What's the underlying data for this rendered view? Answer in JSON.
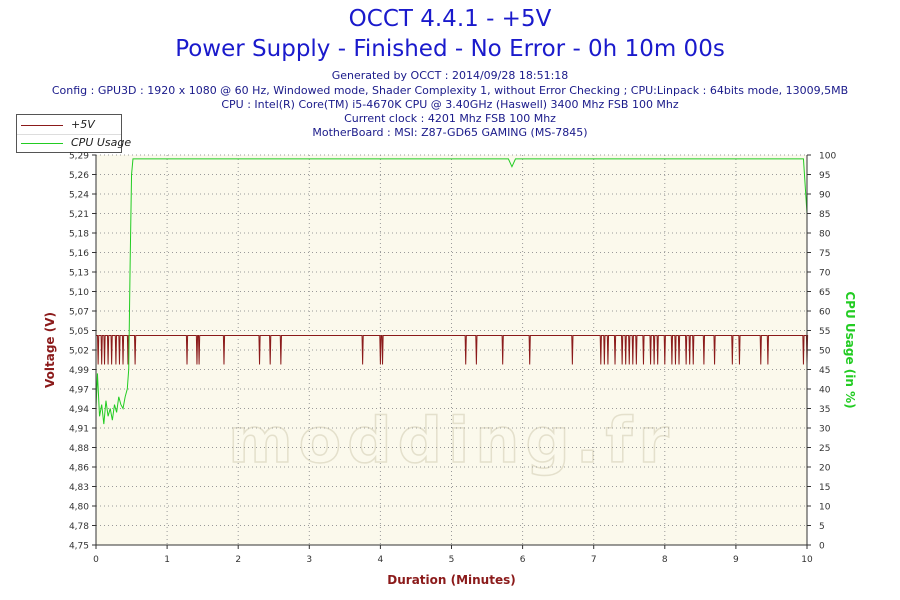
{
  "header": {
    "title": "OCCT 4.4.1 - +5V",
    "subtitle": "Power Supply - Finished - No Error - 0h 10m 00s",
    "generated": "Generated by OCCT : 2014/09/28 18:51:18",
    "config": "Config : GPU3D : 1920 x 1080 @ 60 Hz, Windowed mode, Shader Complexity 1, without Error Checking ; CPU:Linpack : 64bits mode, 13009,5MB",
    "cpu": "CPU : Intel(R) Core(TM) i5-4670K CPU @ 3.40GHz (Haswell) 3400 Mhz FSB 100 Mhz",
    "clock": "Current clock : 4201 Mhz FSB 100 Mhz",
    "motherboard": "MotherBoard : MSI: Z87-GD65 GAMING (MS-7845)"
  },
  "watermark": "modding.fr",
  "chart_data": {
    "type": "line",
    "title": "OCCT 4.4.1 - +5V",
    "xlabel": "Duration (Minutes)",
    "ylabel": "Voltage (V)",
    "y2label": "CPU Usage (in %)",
    "xlim": [
      0,
      10
    ],
    "ylim": [
      4.75,
      5.29
    ],
    "y2lim": [
      0,
      100
    ],
    "x_ticks": [
      "0",
      "1",
      "2",
      "3",
      "4",
      "5",
      "6",
      "7",
      "8",
      "9",
      "10"
    ],
    "y_ticks": [
      "4,75",
      "4,78",
      "4,80",
      "4,83",
      "4,86",
      "4,88",
      "4,91",
      "4,94",
      "4,97",
      "4,99",
      "5,02",
      "5,05",
      "5,07",
      "5,10",
      "5,13",
      "5,16",
      "5,18",
      "5,21",
      "5,24",
      "5,26",
      "5,29"
    ],
    "y2_ticks": [
      "0",
      "5",
      "10",
      "15",
      "20",
      "25",
      "30",
      "35",
      "40",
      "45",
      "50",
      "55",
      "60",
      "65",
      "70",
      "75",
      "80",
      "85",
      "90",
      "95",
      "100"
    ],
    "grid": true,
    "legend_position": "top-left",
    "series": [
      {
        "name": "+5V",
        "axis": "left",
        "color": "#8b1a1a",
        "baseline": 5.04,
        "low": 5.0,
        "dip_times": [
          0.03,
          0.08,
          0.12,
          0.17,
          0.22,
          0.28,
          0.33,
          0.38,
          0.45,
          0.55,
          1.28,
          1.42,
          1.45,
          1.8,
          2.3,
          2.45,
          2.6,
          3.75,
          4.0,
          4.03,
          5.2,
          5.35,
          5.72,
          6.1,
          6.7,
          7.1,
          7.15,
          7.2,
          7.3,
          7.4,
          7.45,
          7.5,
          7.55,
          7.6,
          7.7,
          7.8,
          7.85,
          7.9,
          8.0,
          8.1,
          8.15,
          8.2,
          8.3,
          8.35,
          8.4,
          8.55,
          8.7,
          8.95,
          9.05,
          9.35,
          9.45,
          9.95,
          10.0
        ]
      },
      {
        "name": "CPU Usage",
        "axis": "right",
        "color": "#22cc22",
        "x": [
          0,
          0.02,
          0.05,
          0.08,
          0.11,
          0.14,
          0.17,
          0.2,
          0.23,
          0.26,
          0.29,
          0.32,
          0.35,
          0.38,
          0.41,
          0.44,
          0.46,
          0.48,
          0.5,
          0.52,
          0.55,
          1.0,
          2.0,
          3.0,
          4.0,
          5.0,
          5.8,
          5.85,
          5.9,
          6.0,
          7.0,
          8.0,
          9.0,
          9.95,
          10.0
        ],
        "values": [
          35,
          44,
          33,
          36,
          31,
          37,
          33,
          35,
          32,
          36,
          34,
          38,
          36,
          35,
          38,
          40,
          45,
          72,
          95,
          99,
          99,
          99,
          99,
          99,
          99,
          99,
          99,
          97,
          99,
          99,
          99,
          99,
          99,
          99,
          85
        ]
      }
    ]
  }
}
